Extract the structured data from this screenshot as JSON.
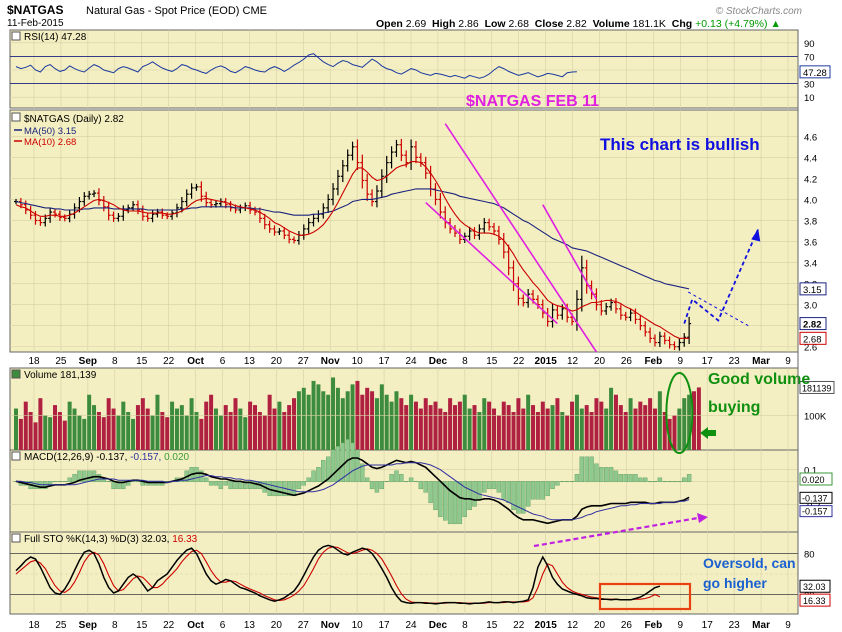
{
  "header": {
    "ticker": "$NATGAS",
    "description": "Natural Gas - Spot Price (EOD)",
    "exchange": "CME",
    "date": "11-Feb-2015",
    "open_label": "Open",
    "open": "2.69",
    "high_label": "High",
    "high": "2.86",
    "low_label": "Low",
    "low": "2.68",
    "close_label": "Close",
    "close": "2.82",
    "volume_label": "Volume",
    "volume": "181.1K",
    "chg_label": "Chg",
    "chg": "+0.13 (+4.79%)",
    "chg_arrow": "▲",
    "brand": "© StockCharts.com"
  },
  "colors": {
    "panel_bg": "#F4EFC2",
    "price_bg": "#F4EFC0",
    "grid": "#D6CFA6",
    "up": "#000000",
    "down": "#CC0000",
    "ma50": "#1A237E",
    "ma10": "#CC0000",
    "annotation_magenta": "#E020E0",
    "annotation_blue": "#1010E0",
    "annotation_green": "#109010",
    "annotation_orange": "#E84010",
    "vol_up": "#3D8B3D",
    "vol_down": "#B02040"
  },
  "x_axis": {
    "labels": [
      "18",
      "25",
      "Sep",
      "8",
      "15",
      "22",
      "Oct",
      "6",
      "13",
      "20",
      "27",
      "Nov",
      "10",
      "17",
      "24",
      "Dec",
      "8",
      "15",
      "22",
      "2015",
      "12",
      "20",
      "26",
      "Feb",
      "9",
      "17",
      "23",
      "Mar",
      "9"
    ],
    "bold": [
      "Sep",
      "Oct",
      "Nov",
      "Dec",
      "2015",
      "Feb",
      "Mar"
    ]
  },
  "rsi_panel": {
    "label": "RSI(14) 47.28",
    "levels": [
      "90",
      "70",
      "50",
      "30",
      "10"
    ],
    "value_tag": "47.28",
    "values": [
      55,
      52,
      54,
      57,
      50,
      47,
      55,
      58,
      52,
      48,
      50,
      56,
      52,
      49,
      47,
      53,
      58,
      55,
      50,
      48,
      46,
      52,
      55,
      53,
      50,
      47,
      55,
      58,
      62,
      57,
      53,
      50,
      48,
      52,
      58,
      56,
      52,
      50,
      47,
      45,
      50,
      54,
      56,
      53,
      48,
      46,
      50,
      55,
      53,
      50,
      48,
      47,
      52,
      55,
      52,
      48,
      52,
      57,
      61,
      66,
      72,
      74,
      68,
      62,
      58,
      55,
      60,
      64,
      62,
      58,
      56,
      54,
      60,
      66,
      62,
      56,
      52,
      50,
      46,
      44,
      48,
      52,
      50,
      46,
      44,
      42,
      45,
      44,
      42,
      40,
      42,
      40,
      38,
      42,
      40,
      38,
      40,
      44,
      50,
      55,
      52,
      48,
      45,
      42,
      44,
      46,
      43,
      40,
      42,
      45,
      44,
      42,
      40,
      46,
      47,
      47.28
    ]
  },
  "chart_data": {
    "type": "candlestick",
    "title": "$NATGAS (Daily) 2.82",
    "annotation_title": "$NATGAS FEB 11",
    "annotation_bullish": "This chart is bullish",
    "legend": [
      {
        "name": "MA(50) 3.15",
        "color": "#1A237E"
      },
      {
        "name": "MA(10) 2.68",
        "color": "#CC0000"
      }
    ],
    "y_ticks": [
      "4.6",
      "4.4",
      "4.2",
      "4.0",
      "3.8",
      "3.6",
      "3.4",
      "3.2",
      "3.0",
      "2.8",
      "2.6"
    ],
    "ylim": [
      2.55,
      4.85
    ],
    "price_tags": [
      {
        "label": "3.15",
        "value": 3.15
      },
      {
        "label": "2.82",
        "value": 2.82
      },
      {
        "label": "2.68",
        "value": 2.68
      }
    ],
    "close": [
      3.98,
      3.95,
      3.9,
      3.85,
      3.8,
      3.78,
      3.82,
      3.88,
      3.86,
      3.83,
      3.82,
      3.86,
      3.92,
      3.98,
      4.03,
      4.05,
      4.06,
      3.99,
      3.93,
      3.85,
      3.82,
      3.84,
      3.9,
      3.92,
      3.95,
      3.9,
      3.84,
      3.82,
      3.86,
      3.88,
      3.85,
      3.84,
      3.87,
      3.92,
      3.98,
      4.05,
      4.11,
      4.12,
      4.03,
      3.97,
      3.95,
      3.96,
      3.98,
      3.95,
      3.92,
      3.9,
      3.92,
      3.94,
      3.9,
      3.88,
      3.82,
      3.76,
      3.72,
      3.69,
      3.7,
      3.66,
      3.62,
      3.61,
      3.66,
      3.72,
      3.78,
      3.82,
      3.86,
      3.92,
      4.0,
      4.1,
      4.22,
      4.32,
      4.42,
      4.5,
      4.35,
      4.18,
      4.05,
      3.98,
      4.08,
      4.22,
      4.35,
      4.45,
      4.52,
      4.42,
      4.35,
      4.5,
      4.4,
      4.35,
      4.25,
      4.1,
      4.0,
      3.88,
      3.78,
      3.72,
      3.68,
      3.62,
      3.65,
      3.7,
      3.66,
      3.72,
      3.78,
      3.74,
      3.7,
      3.62,
      3.5,
      3.35,
      3.2,
      3.06,
      3.02,
      3.1,
      3.05,
      3.0,
      2.92,
      2.84,
      2.95,
      2.9,
      2.96,
      2.88,
      2.84,
      3.05,
      3.35,
      3.18,
      3.1,
      3.0,
      2.94,
      2.98,
      3.02,
      2.96,
      2.9,
      2.88,
      2.92,
      2.86,
      2.8,
      2.74,
      2.68,
      2.64,
      2.7,
      2.66,
      2.62,
      2.6,
      2.64,
      2.69,
      2.82
    ],
    "ma10": [
      3.95,
      3.93,
      3.92,
      3.89,
      3.86,
      3.84,
      3.84,
      3.85,
      3.85,
      3.84,
      3.84,
      3.85,
      3.87,
      3.9,
      3.93,
      3.96,
      3.99,
      4.0,
      3.99,
      3.97,
      3.95,
      3.92,
      3.9,
      3.89,
      3.89,
      3.89,
      3.88,
      3.87,
      3.87,
      3.87,
      3.87,
      3.86,
      3.86,
      3.87,
      3.89,
      3.92,
      3.96,
      3.99,
      4.0,
      4.01,
      4.0,
      3.99,
      3.98,
      3.97,
      3.96,
      3.94,
      3.93,
      3.92,
      3.91,
      3.9,
      3.88,
      3.85,
      3.82,
      3.78,
      3.76,
      3.73,
      3.7,
      3.68,
      3.66,
      3.66,
      3.67,
      3.69,
      3.72,
      3.76,
      3.82,
      3.89,
      3.97,
      4.06,
      4.15,
      4.24,
      4.3,
      4.3,
      4.26,
      4.21,
      4.18,
      4.19,
      4.22,
      4.26,
      4.3,
      4.32,
      4.33,
      4.36,
      4.36,
      4.35,
      4.31,
      4.25,
      4.18,
      4.1,
      4.01,
      3.93,
      3.86,
      3.8,
      3.76,
      3.73,
      3.7,
      3.68,
      3.68,
      3.68,
      3.67,
      3.65,
      3.61,
      3.55,
      3.48,
      3.4,
      3.33,
      3.27,
      3.21,
      3.16,
      3.1,
      3.04,
      3.01,
      2.99,
      2.98,
      2.96,
      2.94,
      2.95,
      2.98,
      3.0,
      3.02,
      3.02,
      3.03,
      3.04,
      3.04,
      3.03,
      3.01,
      2.98,
      2.96,
      2.93,
      2.9,
      2.87,
      2.84,
      2.81,
      2.79,
      2.76,
      2.73,
      2.7,
      2.68,
      2.68,
      2.68
    ],
    "ma50": [
      3.98,
      3.97,
      3.96,
      3.95,
      3.94,
      3.93,
      3.92,
      3.92,
      3.91,
      3.91,
      3.9,
      3.9,
      3.9,
      3.9,
      3.91,
      3.91,
      3.92,
      3.92,
      3.92,
      3.92,
      3.91,
      3.91,
      3.91,
      3.91,
      3.91,
      3.91,
      3.91,
      3.9,
      3.9,
      3.9,
      3.9,
      3.9,
      3.9,
      3.9,
      3.91,
      3.91,
      3.92,
      3.92,
      3.93,
      3.93,
      3.93,
      3.93,
      3.93,
      3.93,
      3.93,
      3.92,
      3.92,
      3.92,
      3.92,
      3.91,
      3.91,
      3.9,
      3.89,
      3.88,
      3.88,
      3.87,
      3.86,
      3.85,
      3.85,
      3.85,
      3.85,
      3.86,
      3.86,
      3.87,
      3.88,
      3.89,
      3.91,
      3.93,
      3.95,
      3.98,
      3.99,
      4.0,
      4.0,
      4.0,
      4.01,
      4.02,
      4.03,
      4.05,
      4.06,
      4.07,
      4.08,
      4.09,
      4.1,
      4.1,
      4.1,
      4.1,
      4.09,
      4.08,
      4.07,
      4.06,
      4.05,
      4.03,
      4.02,
      4.01,
      4.0,
      3.99,
      3.98,
      3.97,
      3.96,
      3.94,
      3.92,
      3.89,
      3.86,
      3.83,
      3.8,
      3.78,
      3.75,
      3.72,
      3.69,
      3.66,
      3.63,
      3.61,
      3.59,
      3.57,
      3.54,
      3.53,
      3.52,
      3.51,
      3.49,
      3.47,
      3.45,
      3.43,
      3.41,
      3.39,
      3.37,
      3.35,
      3.33,
      3.31,
      3.29,
      3.27,
      3.25,
      3.23,
      3.22,
      3.2,
      3.19,
      3.18,
      3.17,
      3.16,
      3.15
    ]
  },
  "volume_panel": {
    "label": "Volume 181,139",
    "value_tag": "181139",
    "tick": "100K",
    "annotation": [
      "Good volume",
      "buying"
    ],
    "values": [
      120,
      90,
      140,
      110,
      80,
      150,
      100,
      95,
      130,
      110,
      85,
      140,
      120,
      100,
      90,
      160,
      130,
      110,
      95,
      150,
      120,
      100,
      140,
      110,
      90,
      130,
      150,
      120,
      100,
      160,
      110,
      95,
      140,
      120,
      130,
      100,
      150,
      110,
      90,
      140,
      160,
      120,
      100,
      130,
      110,
      150,
      120,
      95,
      140,
      130,
      110,
      100,
      160,
      120,
      140,
      110,
      130,
      150,
      170,
      180,
      160,
      200,
      190,
      170,
      160,
      210,
      180,
      150,
      170,
      190,
      200,
      160,
      180,
      170,
      150,
      190,
      160,
      140,
      170,
      150,
      130,
      160,
      140,
      120,
      150,
      130,
      140,
      120,
      110,
      150,
      130,
      140,
      160,
      120,
      130,
      110,
      150,
      140,
      120,
      100,
      140,
      130,
      110,
      150,
      120,
      160,
      130,
      110,
      140,
      120,
      130,
      150,
      110,
      100,
      140,
      160,
      120,
      130,
      110,
      150,
      140,
      120,
      180,
      160,
      130,
      110,
      150,
      120,
      140,
      130,
      150,
      120,
      170,
      110,
      90,
      100,
      120,
      150,
      160,
      170,
      181.139
    ]
  },
  "macd_panel": {
    "label_prefix": "MACD(12,26,9)",
    "macd": "-0.137",
    "signal": "-0.157",
    "hist": "0.020",
    "ticks": [
      "0.1",
      "-0.2"
    ],
    "tag_hist": "0.020",
    "tag_macd": "-0.137",
    "tag_signal": "-0.157",
    "macd_values": [
      0.0,
      -0.01,
      -0.02,
      -0.03,
      -0.04,
      -0.05,
      -0.05,
      -0.04,
      -0.03,
      -0.03,
      -0.03,
      -0.02,
      -0.01,
      0.01,
      0.02,
      0.03,
      0.04,
      0.04,
      0.03,
      0.02,
      0.0,
      -0.01,
      -0.01,
      0.0,
      0.01,
      0.01,
      0.0,
      -0.01,
      -0.01,
      -0.01,
      -0.01,
      -0.01,
      0.0,
      0.01,
      0.02,
      0.04,
      0.06,
      0.07,
      0.07,
      0.06,
      0.04,
      0.03,
      0.02,
      0.02,
      0.01,
      0.0,
      0.0,
      -0.01,
      -0.01,
      -0.02,
      -0.03,
      -0.05,
      -0.07,
      -0.08,
      -0.09,
      -0.1,
      -0.11,
      -0.12,
      -0.11,
      -0.1,
      -0.08,
      -0.06,
      -0.04,
      -0.01,
      0.02,
      0.06,
      0.1,
      0.14,
      0.18,
      0.2,
      0.2,
      0.18,
      0.15,
      0.12,
      0.11,
      0.12,
      0.14,
      0.16,
      0.18,
      0.17,
      0.16,
      0.17,
      0.16,
      0.14,
      0.12,
      0.08,
      0.04,
      0.0,
      -0.04,
      -0.08,
      -0.11,
      -0.14,
      -0.15,
      -0.15,
      -0.16,
      -0.16,
      -0.15,
      -0.15,
      -0.16,
      -0.18,
      -0.21,
      -0.24,
      -0.28,
      -0.31,
      -0.33,
      -0.33,
      -0.33,
      -0.34,
      -0.35,
      -0.36,
      -0.35,
      -0.34,
      -0.33,
      -0.33,
      -0.33,
      -0.3,
      -0.24,
      -0.22,
      -0.21,
      -0.21,
      -0.21,
      -0.2,
      -0.19,
      -0.19,
      -0.19,
      -0.19,
      -0.18,
      -0.18,
      -0.18,
      -0.18,
      -0.19,
      -0.19,
      -0.18,
      -0.18,
      -0.18,
      -0.18,
      -0.17,
      -0.16,
      -0.137
    ],
    "signal_values": [
      0.0,
      0.0,
      -0.01,
      -0.01,
      -0.02,
      -0.03,
      -0.03,
      -0.03,
      -0.03,
      -0.03,
      -0.03,
      -0.03,
      -0.03,
      -0.02,
      -0.01,
      0.0,
      0.01,
      0.02,
      0.02,
      0.02,
      0.02,
      0.01,
      0.01,
      0.01,
      0.01,
      0.01,
      0.01,
      0.0,
      0.0,
      0.0,
      0.0,
      -0.01,
      0.0,
      0.0,
      0.01,
      0.01,
      0.02,
      0.03,
      0.04,
      0.05,
      0.05,
      0.04,
      0.04,
      0.03,
      0.03,
      0.02,
      0.02,
      0.01,
      0.01,
      0.0,
      -0.01,
      -0.02,
      -0.03,
      -0.04,
      -0.05,
      -0.06,
      -0.07,
      -0.08,
      -0.09,
      -0.09,
      -0.09,
      -0.09,
      -0.08,
      -0.07,
      -0.05,
      -0.03,
      0.0,
      0.03,
      0.06,
      0.09,
      0.11,
      0.13,
      0.14,
      0.14,
      0.14,
      0.14,
      0.14,
      0.14,
      0.15,
      0.15,
      0.16,
      0.16,
      0.16,
      0.16,
      0.15,
      0.14,
      0.12,
      0.1,
      0.07,
      0.04,
      0.01,
      -0.02,
      -0.05,
      -0.07,
      -0.09,
      -0.11,
      -0.12,
      -0.13,
      -0.14,
      -0.15,
      -0.16,
      -0.18,
      -0.2,
      -0.22,
      -0.24,
      -0.26,
      -0.28,
      -0.29,
      -0.3,
      -0.32,
      -0.33,
      -0.33,
      -0.33,
      -0.33,
      -0.33,
      -0.32,
      -0.31,
      -0.29,
      -0.28,
      -0.26,
      -0.25,
      -0.24,
      -0.23,
      -0.22,
      -0.21,
      -0.21,
      -0.2,
      -0.2,
      -0.19,
      -0.19,
      -0.19,
      -0.19,
      -0.19,
      -0.18,
      -0.18,
      -0.18,
      -0.17,
      -0.17,
      -0.157
    ]
  },
  "sto_panel": {
    "label_prefix": "Full STO %K(14,3) %D(3)",
    "k": "32.03",
    "d": "16.33",
    "ticks": [
      "80",
      "20"
    ],
    "tag_k": "32.03",
    "tag_d": "16.33",
    "annotation": [
      "Oversold, can",
      "go higher"
    ],
    "k_values": [
      55,
      62,
      70,
      75,
      72,
      60,
      45,
      30,
      22,
      20,
      28,
      40,
      55,
      70,
      82,
      85,
      80,
      65,
      45,
      30,
      22,
      25,
      35,
      45,
      50,
      45,
      35,
      25,
      30,
      40,
      45,
      50,
      60,
      70,
      78,
      85,
      88,
      80,
      65,
      50,
      40,
      35,
      38,
      42,
      40,
      35,
      30,
      28,
      25,
      22,
      18,
      15,
      12,
      10,
      12,
      15,
      20,
      25,
      35,
      48,
      62,
      75,
      85,
      90,
      92,
      90,
      85,
      80,
      78,
      82,
      85,
      88,
      86,
      80,
      70,
      58,
      45,
      30,
      18,
      10,
      8,
      7,
      8,
      8,
      7,
      7,
      6,
      7,
      8,
      8,
      8,
      7,
      7,
      6,
      7,
      7,
      8,
      9,
      8,
      8,
      9,
      9,
      8,
      9,
      10,
      12,
      30,
      60,
      75,
      62,
      45,
      35,
      28,
      25,
      22,
      20,
      18,
      15,
      14,
      14,
      13,
      13,
      12,
      13,
      12,
      12,
      12,
      14,
      16,
      20,
      25,
      30,
      32.03
    ],
    "d_values": [
      50,
      56,
      62,
      68,
      70,
      66,
      58,
      45,
      33,
      25,
      23,
      28,
      38,
      52,
      68,
      78,
      82,
      78,
      65,
      48,
      33,
      25,
      27,
      35,
      43,
      47,
      45,
      38,
      30,
      30,
      35,
      43,
      50,
      58,
      68,
      76,
      83,
      85,
      80,
      68,
      55,
      45,
      38,
      38,
      40,
      39,
      35,
      31,
      28,
      25,
      22,
      18,
      15,
      12,
      11,
      12,
      15,
      19,
      25,
      33,
      45,
      58,
      72,
      82,
      88,
      90,
      89,
      85,
      81,
      80,
      82,
      85,
      87,
      85,
      80,
      72,
      60,
      47,
      33,
      21,
      13,
      9,
      8,
      8,
      8,
      7,
      7,
      7,
      7,
      8,
      8,
      8,
      7,
      7,
      7,
      7,
      7,
      8,
      8,
      8,
      8,
      9,
      9,
      9,
      9,
      10,
      15,
      30,
      50,
      65,
      62,
      50,
      38,
      30,
      25,
      22,
      20,
      18,
      16,
      15,
      14,
      13,
      13,
      13,
      12,
      12,
      12,
      13,
      13,
      14,
      16,
      20,
      16.33
    ]
  }
}
